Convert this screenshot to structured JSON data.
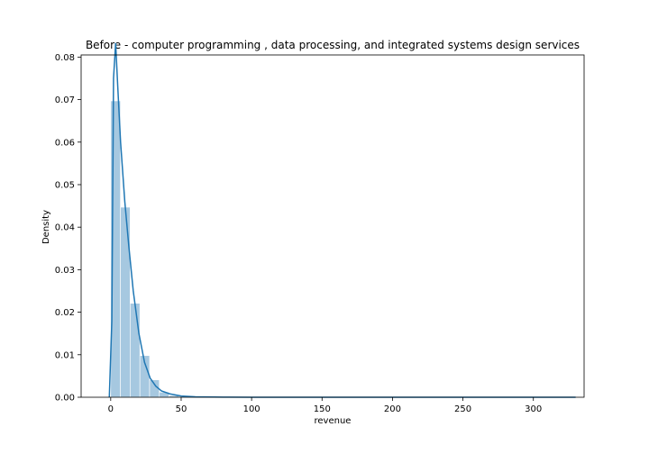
{
  "chart_data": {
    "type": "bar",
    "title": "Before - computer programming , data processing, and integrated systems design services",
    "xlabel": "revenue",
    "ylabel": "Density",
    "xlim": [
      -21,
      336
    ],
    "ylim": [
      0,
      0.0805
    ],
    "xticks": [
      0,
      50,
      100,
      150,
      200,
      250,
      300
    ],
    "yticks": [
      0.0,
      0.01,
      0.02,
      0.03,
      0.04,
      0.05,
      0.06,
      0.07,
      0.08
    ],
    "ytick_labels": [
      "0.00",
      "0.01",
      "0.02",
      "0.03",
      "0.04",
      "0.05",
      "0.06",
      "0.07",
      "0.08"
    ],
    "grid": false,
    "colors": {
      "bars": "#a6c8e0",
      "kde": "#1f77b4"
    },
    "histogram": {
      "bin_edges": [
        0,
        6.9,
        13.8,
        20.7,
        27.6,
        34.5,
        41.4,
        48.3,
        55.2
      ],
      "values": [
        0.0697,
        0.0447,
        0.0221,
        0.0098,
        0.0041,
        0.0012,
        0.0004,
        0.0001
      ]
    },
    "kde": {
      "x": [
        -1,
        0.8,
        2,
        3.5,
        5,
        7,
        10,
        13,
        16,
        20,
        24,
        28,
        32,
        36,
        42,
        50,
        60,
        80,
        100,
        150,
        200,
        250,
        300,
        330
      ],
      "y": [
        0.0,
        0.018,
        0.075,
        0.0833,
        0.073,
        0.06,
        0.046,
        0.035,
        0.025,
        0.015,
        0.0082,
        0.0045,
        0.0026,
        0.0015,
        0.0008,
        0.0003,
        0.0001,
        3e-05,
        1e-05,
        3e-06,
        1e-06,
        5e-07,
        2e-07,
        0.0
      ]
    }
  }
}
